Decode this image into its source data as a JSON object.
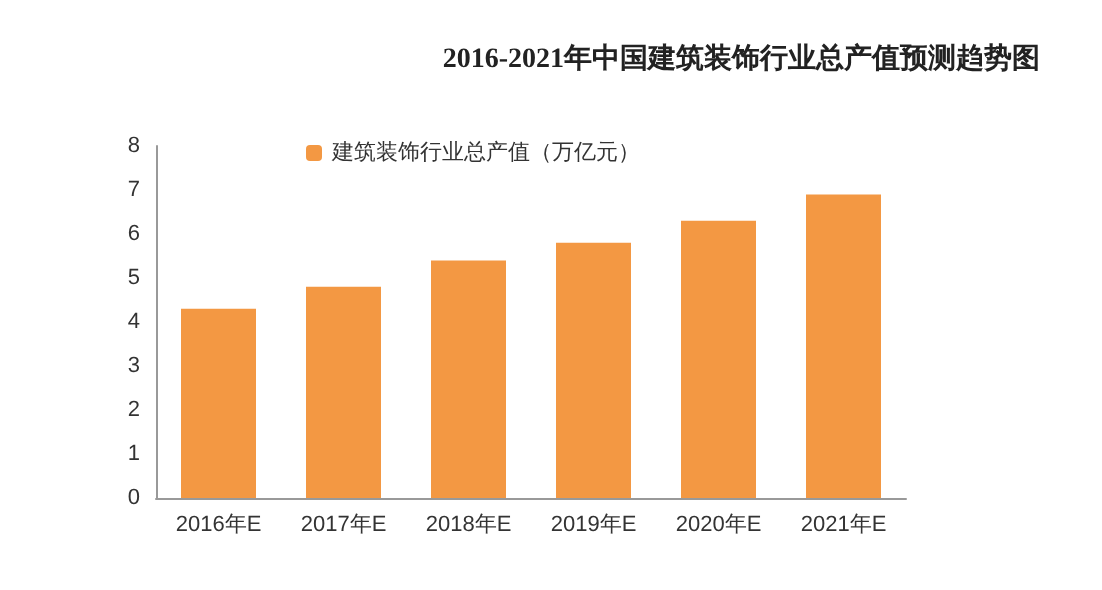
{
  "chart_data": {
    "type": "bar",
    "title": "2016-2021年中国建筑装饰行业总产值预测趋势图",
    "categories": [
      "2016年E",
      "2017年E",
      "2018年E",
      "2019年E",
      "2020年E",
      "2021年E"
    ],
    "series": [
      {
        "name": "建筑装饰行业总产值（万亿元）",
        "color": "#f39843",
        "values": [
          4.3,
          4.8,
          5.4,
          5.8,
          6.3,
          6.9
        ]
      }
    ],
    "ylim": [
      0,
      8
    ],
    "yticks": [
      0,
      1,
      2,
      3,
      4,
      5,
      6,
      7,
      8
    ],
    "grid": false,
    "legend": "top left"
  }
}
